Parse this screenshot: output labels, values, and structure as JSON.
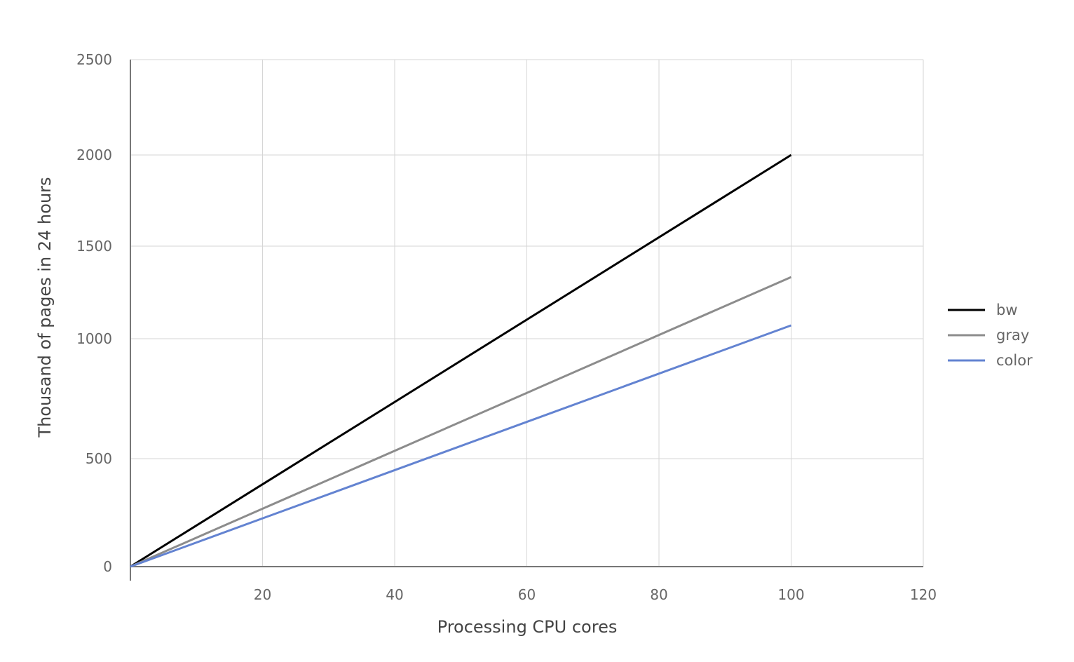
{
  "chart_data": {
    "type": "line",
    "title": "",
    "xlabel": "Processing CPU cores",
    "ylabel": "Thousand of pages in 24 hours",
    "xlim": [
      0,
      120
    ],
    "ylim": [
      0,
      2500
    ],
    "x_ticks": [
      "20",
      "40",
      "60",
      "80",
      "100",
      "120"
    ],
    "y_ticks": [
      "0",
      "500",
      "1000",
      "1500",
      "2000",
      "2500"
    ],
    "grid": true,
    "legend_position": "right",
    "series": [
      {
        "name": "bw",
        "color": "#000000",
        "x": [
          0,
          100
        ],
        "y": [
          0,
          2000
        ]
      },
      {
        "name": "gray",
        "color": "#8c8c8c",
        "x": [
          0,
          100
        ],
        "y": [
          0,
          1333
        ]
      },
      {
        "name": "color",
        "color": "#6383d1",
        "x": [
          0,
          100
        ],
        "y": [
          0,
          1072
        ]
      }
    ]
  }
}
